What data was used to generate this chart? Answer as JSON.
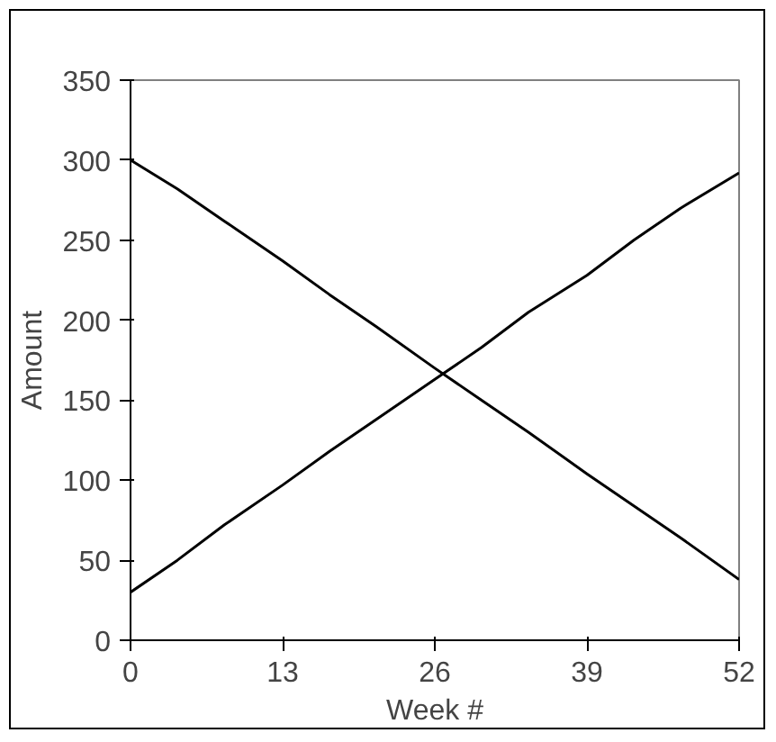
{
  "chart_data": {
    "type": "line",
    "xlabel": "Week #",
    "ylabel": "Amount",
    "xlim": [
      0,
      52
    ],
    "ylim": [
      0,
      350
    ],
    "xticks": [
      0,
      13,
      26,
      39,
      52
    ],
    "yticks": [
      0,
      50,
      100,
      150,
      200,
      250,
      300,
      350
    ],
    "grid": false,
    "line_style": "solid",
    "series": [
      {
        "color": "#000000",
        "x": [
          0,
          4,
          8,
          13,
          17,
          21,
          26,
          30,
          34,
          39,
          43,
          47,
          52
        ],
        "values": [
          300,
          282,
          262,
          237,
          216,
          196,
          170,
          150,
          130,
          104,
          84,
          64,
          38
        ]
      },
      {
        "color": "#000000",
        "x": [
          0,
          4,
          8,
          13,
          17,
          21,
          26,
          30,
          34,
          39,
          43,
          47,
          52
        ],
        "values": [
          30,
          50,
          72,
          97,
          118,
          138,
          163,
          183,
          205,
          228,
          250,
          270,
          292
        ]
      }
    ]
  }
}
